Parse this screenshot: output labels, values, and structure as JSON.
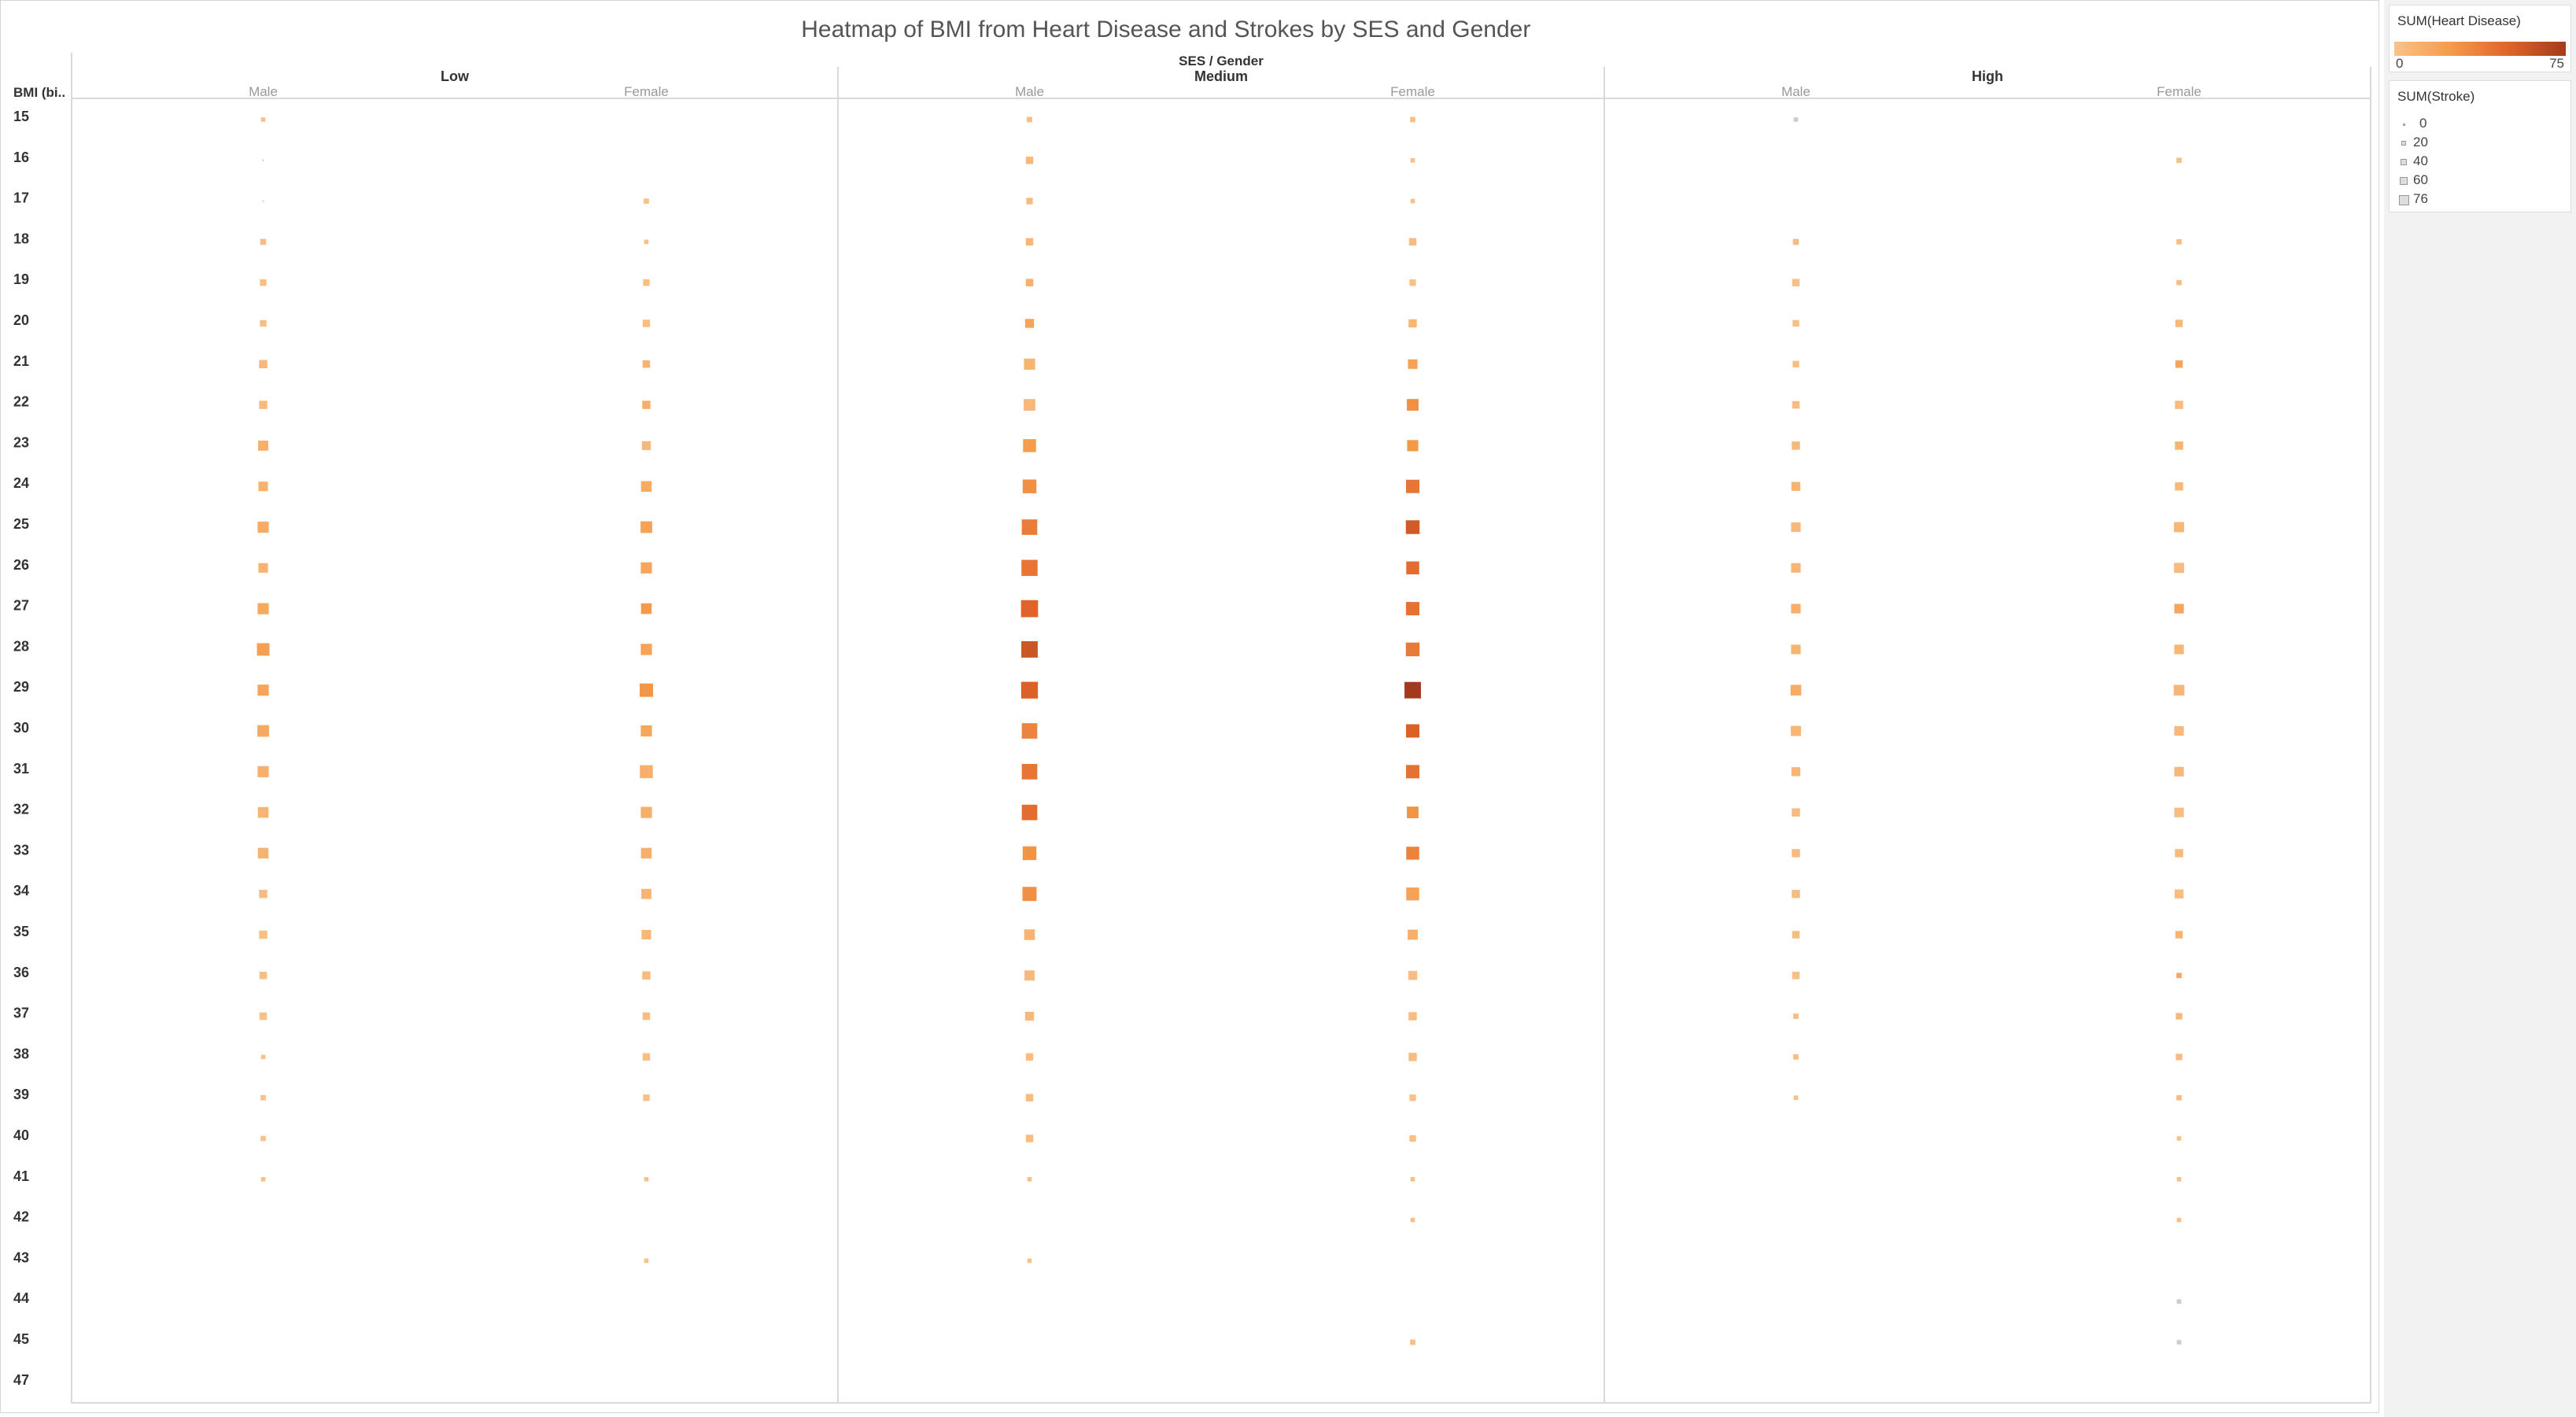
{
  "chart_data": {
    "type": "heatmap",
    "title": "Heatmap of BMI from Heart Disease and Strokes by SES and Gender",
    "column_header": "SES / Gender",
    "row_header": "BMI (bi..",
    "groups": [
      "Low",
      "Medium",
      "High"
    ],
    "genders": [
      "Male",
      "Female"
    ],
    "rows": [
      "15",
      "16",
      "17",
      "18",
      "19",
      "20",
      "21",
      "22",
      "23",
      "24",
      "25",
      "26",
      "27",
      "28",
      "29",
      "30",
      "31",
      "32",
      "33",
      "34",
      "35",
      "36",
      "37",
      "38",
      "39",
      "40",
      "41",
      "42",
      "43",
      "44",
      "45",
      "47"
    ],
    "color_measure": "SUM(Heart Disease)",
    "color_range": [
      0,
      75
    ],
    "color_min": "#f8c38a",
    "color_max": "#a33a1f",
    "size_measure": "SUM(Stroke)",
    "size_legend": [
      "0",
      "20",
      "40",
      "60",
      "76"
    ],
    "series": [
      {
        "group": "Low",
        "gender": "Male",
        "heart_disease": [
          1,
          1,
          1,
          4,
          3,
          3,
          6,
          5,
          12,
          10,
          14,
          10,
          16,
          22,
          18,
          16,
          12,
          9,
          10,
          4,
          3,
          3,
          2,
          1,
          1,
          1,
          1,
          0,
          0,
          0,
          0,
          0
        ],
        "stroke": [
          1,
          0,
          0,
          3,
          4,
          4,
          8,
          8,
          14,
          12,
          18,
          12,
          18,
          24,
          18,
          20,
          18,
          16,
          16,
          8,
          8,
          6,
          6,
          1,
          2,
          2,
          1,
          0,
          0,
          0,
          0,
          0
        ]
      },
      {
        "group": "Low",
        "gender": "Female",
        "heart_disease": [
          0,
          0,
          1,
          2,
          3,
          3,
          9,
          13,
          6,
          15,
          20,
          18,
          25,
          20,
          27,
          17,
          12,
          13,
          12,
          9,
          7,
          4,
          4,
          2,
          2,
          0,
          1,
          0,
          1,
          0,
          0,
          0
        ],
        "stroke": [
          0,
          0,
          2,
          1,
          4,
          6,
          6,
          8,
          10,
          16,
          20,
          18,
          16,
          18,
          28,
          18,
          26,
          18,
          16,
          14,
          12,
          8,
          6,
          6,
          4,
          0,
          1,
          0,
          1,
          0,
          0,
          0
        ]
      },
      {
        "group": "Medium",
        "gender": "Male",
        "heart_disease": [
          4,
          6,
          5,
          8,
          12,
          20,
          10,
          6,
          24,
          30,
          38,
          42,
          50,
          58,
          52,
          35,
          42,
          46,
          28,
          30,
          10,
          6,
          6,
          4,
          4,
          4,
          1,
          0,
          1,
          0,
          0,
          0
        ],
        "stroke": [
          2,
          6,
          4,
          6,
          6,
          10,
          18,
          20,
          26,
          30,
          40,
          44,
          50,
          46,
          48,
          40,
          40,
          40,
          30,
          32,
          16,
          14,
          10,
          6,
          6,
          6,
          1,
          0,
          1,
          0,
          0,
          0
        ]
      },
      {
        "group": "Medium",
        "gender": "Female",
        "heart_disease": [
          2,
          1,
          1,
          5,
          2,
          8,
          20,
          30,
          26,
          42,
          56,
          46,
          44,
          40,
          75,
          52,
          44,
          28,
          36,
          20,
          12,
          4,
          4,
          4,
          2,
          2,
          1,
          1,
          0,
          0,
          2,
          0
        ],
        "stroke": [
          2,
          1,
          1,
          6,
          4,
          8,
          12,
          20,
          18,
          28,
          30,
          26,
          28,
          30,
          46,
          28,
          28,
          20,
          26,
          26,
          14,
          10,
          8,
          8,
          4,
          4,
          1,
          1,
          0,
          0,
          2,
          0
        ]
      },
      {
        "group": "High",
        "gender": "Male",
        "heart_disease": [
          0,
          0,
          0,
          4,
          2,
          3,
          3,
          4,
          6,
          10,
          6,
          8,
          12,
          9,
          14,
          8,
          8,
          5,
          5,
          4,
          5,
          2,
          4,
          4,
          2,
          0,
          0,
          0,
          0,
          0,
          0,
          0
        ],
        "stroke": [
          1,
          0,
          0,
          3,
          6,
          4,
          4,
          6,
          8,
          10,
          12,
          12,
          12,
          12,
          16,
          14,
          10,
          8,
          8,
          8,
          6,
          6,
          2,
          2,
          1,
          0,
          0,
          0,
          0,
          0,
          0,
          0
        ]
      },
      {
        "group": "High",
        "gender": "Female",
        "heart_disease": [
          0,
          2,
          0,
          3,
          3,
          6,
          18,
          4,
          10,
          6,
          8,
          4,
          18,
          8,
          8,
          6,
          6,
          4,
          5,
          4,
          10,
          16,
          6,
          4,
          4,
          1,
          1,
          1,
          0,
          0,
          0,
          0
        ],
        "stroke": [
          0,
          2,
          0,
          2,
          2,
          6,
          6,
          8,
          8,
          8,
          14,
          14,
          12,
          12,
          16,
          12,
          12,
          12,
          8,
          10,
          6,
          2,
          4,
          4,
          2,
          1,
          1,
          1,
          0,
          1,
          1,
          0
        ]
      }
    ]
  }
}
